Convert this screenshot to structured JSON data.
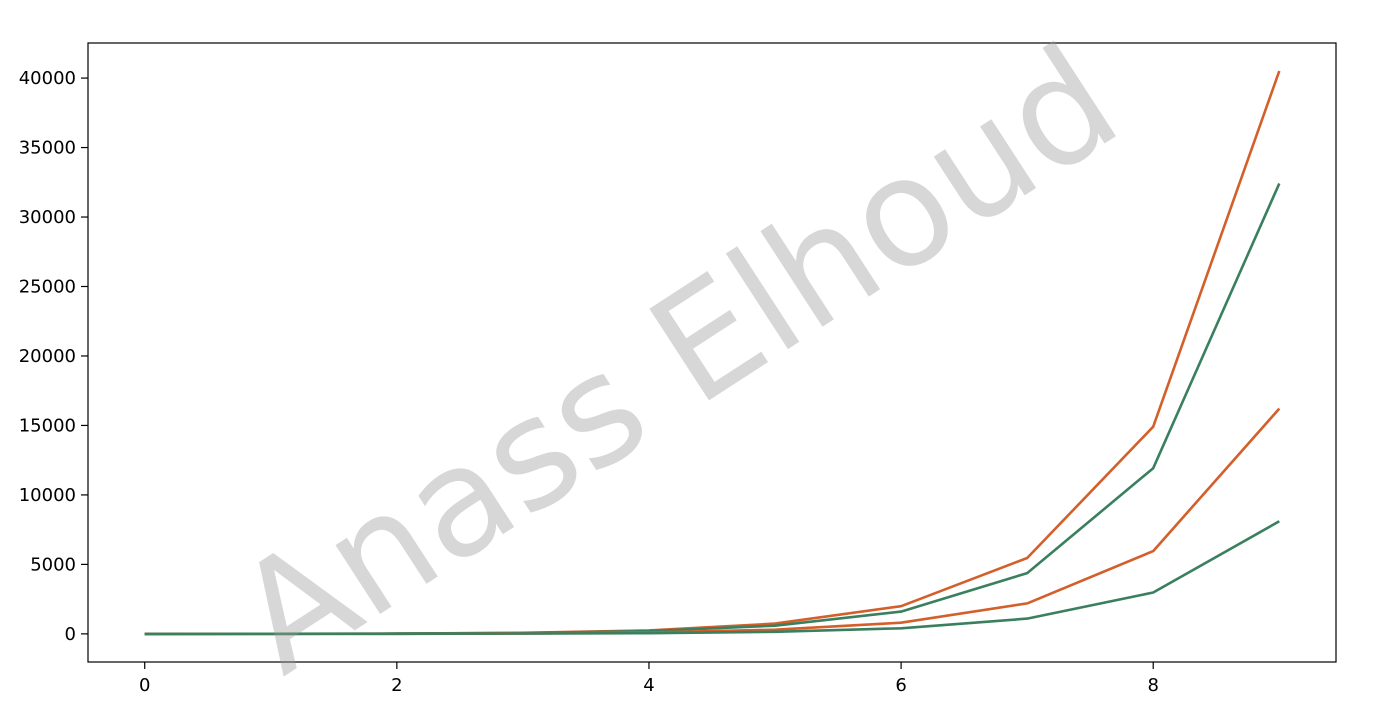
{
  "watermark": "Anass Elhoud",
  "chart_data": {
    "type": "line",
    "title": "",
    "xlabel": "",
    "ylabel": "",
    "x": [
      0,
      1,
      2,
      3,
      4,
      5,
      6,
      7,
      8,
      9
    ],
    "xlim": [
      -0.45,
      9.45
    ],
    "ylim": [
      -2025,
      42525
    ],
    "xticks": [
      0,
      2,
      4,
      6,
      8
    ],
    "yticks": [
      0,
      5000,
      10000,
      15000,
      20000,
      25000,
      30000,
      35000,
      40000
    ],
    "grid": false,
    "legend": "none",
    "series": [
      {
        "color": "#d35f2a",
        "values": [
          0,
          5,
          20,
          80,
          250,
          740,
          1990,
          5460,
          14910,
          40510
        ]
      },
      {
        "color": "#3a7f5e",
        "values": [
          0,
          4,
          16,
          64,
          200,
          590,
          1600,
          4370,
          11920,
          32410
        ]
      },
      {
        "color": "#d35f2a",
        "values": [
          0,
          2,
          8,
          32,
          100,
          300,
          800,
          2190,
          5960,
          16210
        ]
      },
      {
        "color": "#3a7f5e",
        "values": [
          0,
          1,
          4,
          16,
          50,
          150,
          400,
          1100,
          2980,
          8100
        ]
      }
    ]
  }
}
